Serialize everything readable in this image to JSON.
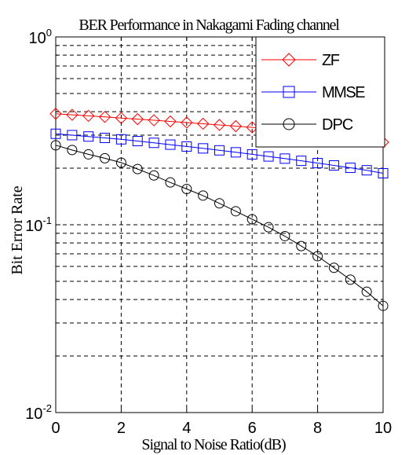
{
  "chart_data": {
    "type": "line",
    "title": "BER Performance in Nakagami Fading channel",
    "xlabel": "Signal to Noise Ratio(dB)",
    "ylabel": "Bit Error Rate",
    "xlim": [
      0,
      10
    ],
    "ylim": [
      0.01,
      1
    ],
    "yscale": "log",
    "grid": true,
    "legend_position": "top-right",
    "x_ticks": [
      "0",
      "2",
      "4",
      "6",
      "8",
      "10"
    ],
    "y_ticks": [
      {
        "base": "10",
        "exp": "-2"
      },
      {
        "base": "10",
        "exp": "-1"
      },
      {
        "base": "10",
        "exp": "0"
      }
    ],
    "x": [
      0,
      0.5,
      1,
      1.5,
      2,
      2.5,
      3,
      3.5,
      4,
      4.5,
      5,
      5.5,
      6,
      6.5,
      7,
      7.5,
      8,
      8.5,
      9,
      9.5,
      10
    ],
    "series": [
      {
        "name": "ZF",
        "color": "#ff0000",
        "marker": "diamond",
        "values": [
          0.39,
          0.385,
          0.38,
          0.375,
          0.37,
          0.365,
          0.36,
          0.355,
          0.35,
          0.345,
          0.34,
          0.335,
          0.33,
          0.325,
          0.32,
          0.315,
          0.31,
          0.303,
          0.295,
          0.285,
          0.275
        ]
      },
      {
        "name": "MMSE",
        "color": "#0000ff",
        "marker": "square",
        "values": [
          0.305,
          0.3,
          0.295,
          0.29,
          0.285,
          0.279,
          0.273,
          0.267,
          0.261,
          0.255,
          0.249,
          0.243,
          0.237,
          0.231,
          0.225,
          0.219,
          0.213,
          0.207,
          0.201,
          0.195,
          0.188
        ]
      },
      {
        "name": "DPC",
        "color": "#000000",
        "marker": "circle",
        "values": [
          0.265,
          0.25,
          0.237,
          0.226,
          0.214,
          0.198,
          0.183,
          0.168,
          0.155,
          0.143,
          0.13,
          0.118,
          0.107,
          0.097,
          0.087,
          0.077,
          0.068,
          0.059,
          0.051,
          0.044,
          0.037
        ]
      }
    ]
  }
}
